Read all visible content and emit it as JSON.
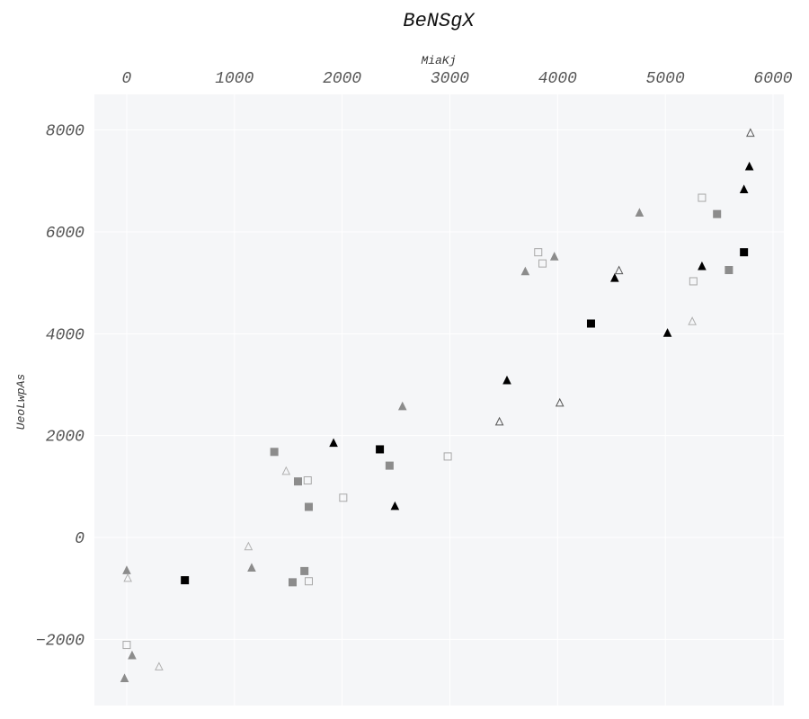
{
  "chart_data": {
    "type": "scatter",
    "title": "BeNSgX",
    "xlabel": "MiaKj",
    "ylabel": "UeoLwpAs",
    "x_axis_position": "top",
    "xlim": [
      -300,
      6100
    ],
    "ylim": [
      -3300,
      8700
    ],
    "x_ticks": [
      0,
      1000,
      2000,
      3000,
      4000,
      5000,
      6000
    ],
    "y_ticks": [
      -2000,
      0,
      2000,
      4000,
      6000,
      8000
    ],
    "x_tick_labels": [
      "0",
      "1000",
      "2000",
      "3000",
      "4000",
      "5000",
      "6000"
    ],
    "y_tick_labels": [
      "−2000",
      "0",
      "2000",
      "4000",
      "6000",
      "8000"
    ],
    "grid": true,
    "background": "#f5f6f8",
    "series": [
      {
        "marker": "square",
        "fill": "#000000",
        "stroke": "#000000",
        "x": [
          540,
          2350,
          4310,
          5730
        ],
        "y": [
          -840,
          1730,
          4200,
          5600
        ]
      },
      {
        "marker": "square",
        "fill": "#8c8c8c",
        "stroke": "#8c8c8c",
        "x": [
          1370,
          1590,
          1690,
          2440,
          1540,
          1650,
          5480,
          5590
        ],
        "y": [
          1680,
          1100,
          600,
          1410,
          -880,
          -660,
          6350,
          5250
        ]
      },
      {
        "marker": "square",
        "fill": "none",
        "stroke": "#a8a8a8",
        "x": [
          1680,
          2010,
          2980,
          3820,
          3860,
          5340,
          5260,
          1690,
          0
        ],
        "y": [
          1120,
          780,
          1590,
          5600,
          5380,
          6670,
          5030,
          -860,
          -2110
        ]
      },
      {
        "marker": "triangle",
        "fill": "#000000",
        "stroke": "#000000",
        "x": [
          1920,
          2490,
          3530,
          4530,
          5020,
          5340,
          5730,
          5780
        ],
        "y": [
          1850,
          610,
          3080,
          5090,
          4010,
          5320,
          6830,
          7280
        ]
      },
      {
        "marker": "triangle",
        "fill": "#8c8c8c",
        "stroke": "#8c8c8c",
        "x": [
          2560,
          3700,
          3970,
          4760,
          1160,
          0,
          50,
          -20
        ],
        "y": [
          2570,
          5220,
          5510,
          6370,
          -600,
          -650,
          -2320,
          -2770
        ]
      },
      {
        "marker": "triangle",
        "fill": "none",
        "stroke": "#555555",
        "x": [
          3460,
          4020,
          4570,
          5790
        ],
        "y": [
          2270,
          2640,
          5240,
          7940
        ]
      },
      {
        "marker": "triangle",
        "fill": "none",
        "stroke": "#b0b0b0",
        "x": [
          1480,
          1130,
          10,
          300,
          5250
        ],
        "y": [
          1300,
          -180,
          -800,
          -2540,
          4240
        ]
      }
    ]
  }
}
